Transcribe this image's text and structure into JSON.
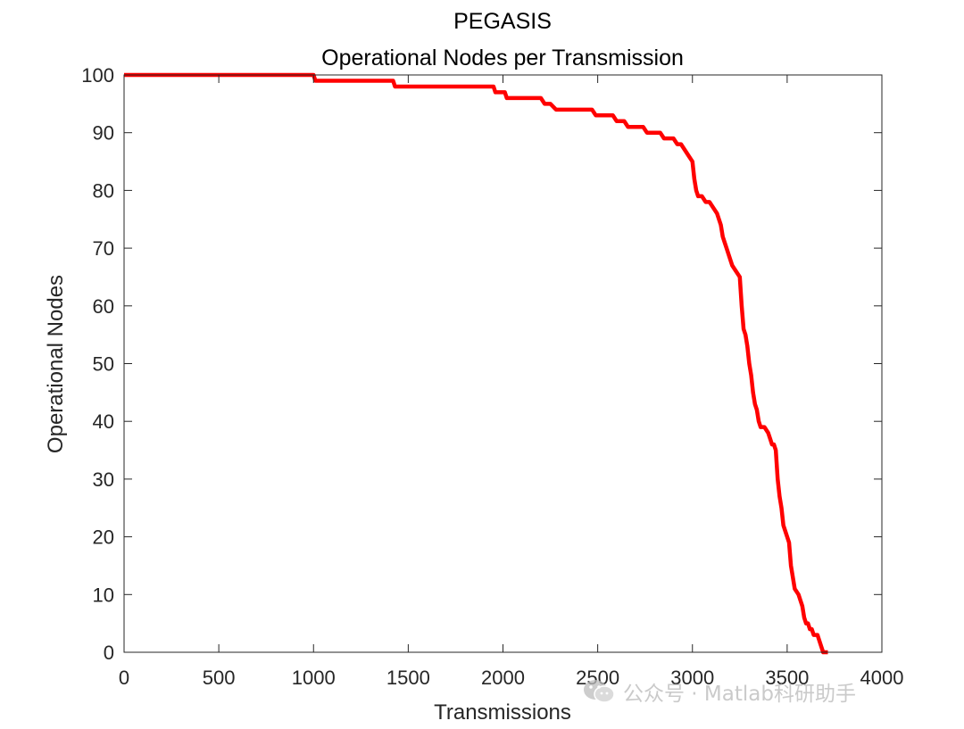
{
  "chart_data": {
    "type": "line",
    "title": "PEGASIS",
    "subtitle": "Operational Nodes per Transmission",
    "xlabel": "Transmissions",
    "ylabel": "Operational Nodes",
    "xlim": [
      0,
      4000
    ],
    "ylim": [
      0,
      100
    ],
    "xticks": [
      0,
      500,
      1000,
      1500,
      2000,
      2500,
      3000,
      3500,
      4000
    ],
    "yticks": [
      0,
      10,
      20,
      30,
      40,
      50,
      60,
      70,
      80,
      90,
      100
    ],
    "xtick_labels": [
      "0",
      "500",
      "1000",
      "1500",
      "2000",
      "2500",
      "3000",
      "3500",
      "4000"
    ],
    "ytick_labels": [
      "0",
      "10",
      "20",
      "30",
      "40",
      "50",
      "60",
      "70",
      "80",
      "90",
      "100"
    ],
    "grid": false,
    "series": [
      {
        "name": "PEGASIS",
        "color": "#ff0000",
        "x": [
          0,
          1000,
          1010,
          1420,
          1430,
          1950,
          1960,
          2010,
          2020,
          2200,
          2220,
          2250,
          2280,
          2470,
          2490,
          2580,
          2600,
          2640,
          2660,
          2740,
          2760,
          2830,
          2850,
          2900,
          2920,
          2940,
          2960,
          2980,
          3000,
          3010,
          3020,
          3030,
          3050,
          3070,
          3090,
          3110,
          3130,
          3150,
          3160,
          3170,
          3180,
          3200,
          3210,
          3230,
          3250,
          3260,
          3270,
          3280,
          3290,
          3300,
          3310,
          3320,
          3330,
          3340,
          3350,
          3360,
          3370,
          3380,
          3400,
          3410,
          3420,
          3430,
          3440,
          3450,
          3460,
          3470,
          3480,
          3490,
          3500,
          3510,
          3520,
          3530,
          3540,
          3560,
          3570,
          3580,
          3590,
          3600,
          3610,
          3620,
          3630,
          3640,
          3660,
          3670,
          3680,
          3690,
          3700,
          3710,
          3715
        ],
        "values": [
          100,
          100,
          99,
          99,
          98,
          98,
          97,
          97,
          96,
          96,
          95,
          95,
          94,
          94,
          93,
          93,
          92,
          92,
          91,
          91,
          90,
          90,
          89,
          89,
          88,
          88,
          87,
          86,
          85,
          82,
          80,
          79,
          79,
          78,
          78,
          77,
          76,
          74,
          72,
          71,
          70,
          68,
          67,
          66,
          65,
          60,
          56,
          55,
          53,
          50,
          48,
          45,
          43,
          42,
          40,
          39,
          39,
          39,
          38,
          37,
          36,
          36,
          35,
          30,
          27,
          25,
          22,
          21,
          20,
          19,
          15,
          13,
          11,
          10,
          9,
          8,
          6,
          5,
          5,
          4,
          4,
          3,
          3,
          2,
          1,
          0,
          0,
          0,
          0
        ]
      }
    ]
  },
  "watermark": {
    "text": "公众号 · Matlab科研助手"
  }
}
